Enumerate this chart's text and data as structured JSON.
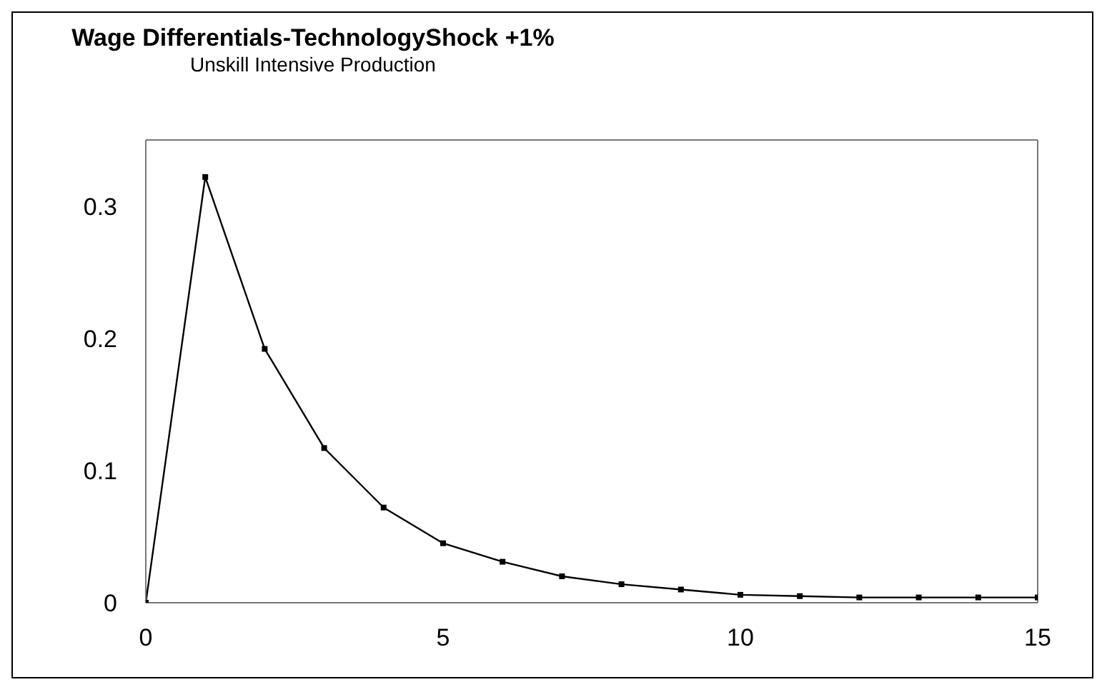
{
  "chart_data": {
    "type": "line",
    "title": "Wage Differentials-TechnologyShock +1%",
    "subtitle": "Unskill Intensive Production",
    "x": [
      0,
      1,
      2,
      3,
      4,
      5,
      6,
      7,
      8,
      9,
      10,
      11,
      12,
      13,
      14,
      15
    ],
    "series": [
      {
        "color": "#000000",
        "values": [
          0,
          0.322,
          0.192,
          0.117,
          0.072,
          0.045,
          0.031,
          0.02,
          0.014,
          0.01,
          0.006,
          0.005,
          0.004,
          0.004,
          0.004,
          0.004
        ]
      }
    ],
    "xlim": [
      0,
      15
    ],
    "xticks": [
      0,
      5,
      10,
      15
    ],
    "ylim": [
      0,
      0.35
    ],
    "yticks": [
      0,
      0.1,
      0.2,
      0.3
    ],
    "grid": false,
    "legend": false,
    "marker": "square",
    "line_style": "solid"
  }
}
